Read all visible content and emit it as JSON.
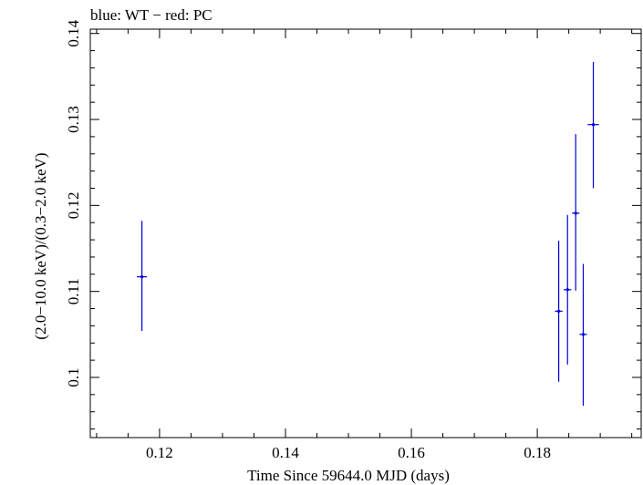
{
  "chart_data": {
    "type": "scatter",
    "title": "blue: WT − red: PC",
    "xlabel": "Time Since 59644.0 MJD (days)",
    "ylabel": "(2.0−10.0 keV)/(0.3−2.0 keV)",
    "xlim": [
      0.109,
      0.1965
    ],
    "ylim": [
      0.093,
      0.1405
    ],
    "x_ticks": [
      {
        "value": 0.12,
        "label": "0.12"
      },
      {
        "value": 0.14,
        "label": "0.14"
      },
      {
        "value": 0.16,
        "label": "0.16"
      },
      {
        "value": 0.18,
        "label": "0.18"
      }
    ],
    "y_ticks": [
      {
        "value": 0.1,
        "label": "0.1"
      },
      {
        "value": 0.11,
        "label": "0.11"
      },
      {
        "value": 0.12,
        "label": "0.12"
      },
      {
        "value": 0.13,
        "label": "0.13"
      },
      {
        "value": 0.14,
        "label": "0.14"
      }
    ],
    "x_minor_step": 0.005,
    "y_minor_step": 0.002,
    "grid": false,
    "series": [
      {
        "name": "WT",
        "color": "#0000dd",
        "points": [
          {
            "x": 0.1172,
            "y": 0.1117,
            "xerr": 0.0008,
            "ylow": 0.1054,
            "yhigh": 0.1182
          },
          {
            "x": 0.1834,
            "y": 0.1077,
            "xerr": 0.0006,
            "ylow": 0.0995,
            "yhigh": 0.1159
          },
          {
            "x": 0.1848,
            "y": 0.1102,
            "xerr": 0.0006,
            "ylow": 0.1015,
            "yhigh": 0.1189
          },
          {
            "x": 0.1861,
            "y": 0.1191,
            "xerr": 0.0006,
            "ylow": 0.1101,
            "yhigh": 0.1283
          },
          {
            "x": 0.1873,
            "y": 0.105,
            "xerr": 0.0006,
            "ylow": 0.0967,
            "yhigh": 0.1132
          },
          {
            "x": 0.1889,
            "y": 0.1294,
            "xerr": 0.0009,
            "ylow": 0.122,
            "yhigh": 0.1367
          }
        ]
      }
    ]
  }
}
